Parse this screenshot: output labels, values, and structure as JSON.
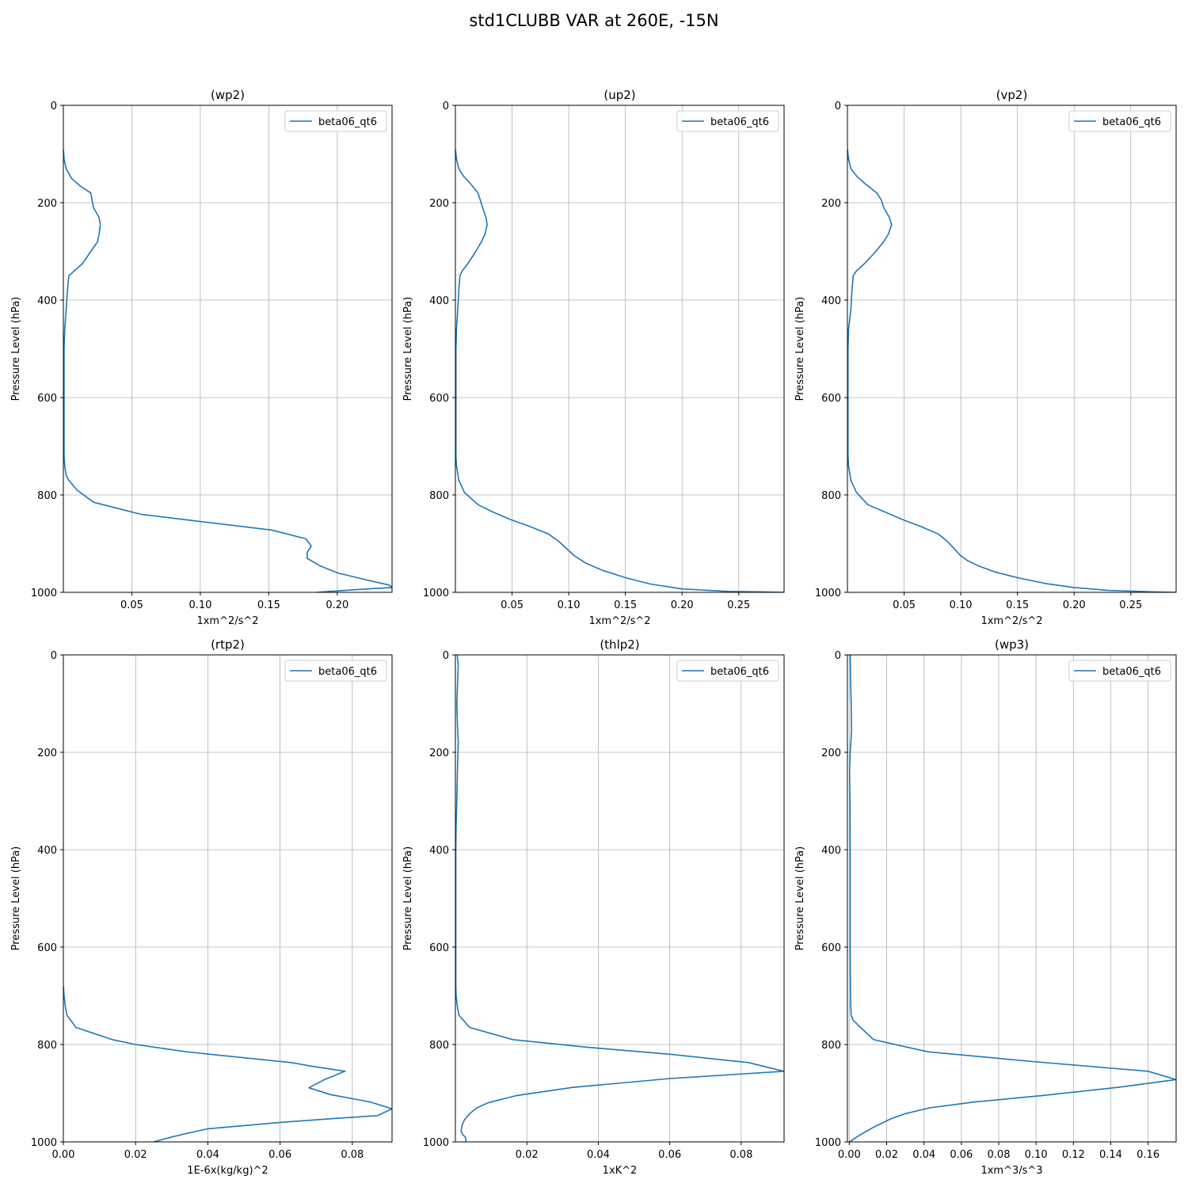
{
  "figure": {
    "title": "std1CLUBB VAR at 260E, -15N"
  },
  "chart_data": [
    {
      "type": "line",
      "title": "(wp2)",
      "xlabel": "1xm^2/s^2",
      "ylabel": "Pressure Level (hPa)",
      "xlim": [
        0.0,
        0.24
      ],
      "ylim": [
        1000,
        0
      ],
      "xticks": [
        0.05,
        0.1,
        0.15,
        0.2
      ],
      "xtick_labels": [
        "0.05",
        "0.10",
        "0.15",
        "0.20"
      ],
      "yticks": [
        0,
        200,
        400,
        600,
        800,
        1000
      ],
      "ytick_labels": [
        "0",
        "200",
        "400",
        "600",
        "800",
        "1000"
      ],
      "grid": true,
      "legend_position": "upper-right",
      "series": [
        {
          "name": "beta06_qt6",
          "color": "#1f77b4",
          "x": [
            0.0,
            0.0005,
            0.002,
            0.006,
            0.012,
            0.02,
            0.021,
            0.022,
            0.026,
            0.027,
            0.026,
            0.025,
            0.02,
            0.014,
            0.008,
            0.004,
            0.003,
            0.002,
            0.001,
            0.0005,
            0.0005,
            0.0005,
            0.0005,
            0.0005,
            0.0005,
            0.001,
            0.002,
            0.004,
            0.01,
            0.022,
            0.057,
            0.152,
            0.177,
            0.181,
            0.178,
            0.178,
            0.187,
            0.2,
            0.222,
            0.238,
            0.24,
            0.222,
            0.2,
            0.185
          ],
          "y": [
            90,
            110,
            130,
            150,
            165,
            180,
            195,
            210,
            230,
            245,
            265,
            280,
            300,
            325,
            340,
            350,
            380,
            420,
            460,
            500,
            550,
            600,
            650,
            700,
            720,
            740,
            760,
            770,
            790,
            815,
            840,
            872,
            890,
            905,
            918,
            930,
            945,
            960,
            975,
            985,
            990,
            993,
            997,
            1000
          ]
        }
      ]
    },
    {
      "type": "line",
      "title": "(up2)",
      "xlabel": "1xm^2/s^2",
      "ylabel": "Pressure Level (hPa)",
      "xlim": [
        0.0,
        0.29
      ],
      "ylim": [
        1000,
        0
      ],
      "xticks": [
        0.05,
        0.1,
        0.15,
        0.2,
        0.25
      ],
      "xtick_labels": [
        "0.05",
        "0.10",
        "0.15",
        "0.20",
        "0.25"
      ],
      "yticks": [
        0,
        200,
        400,
        600,
        800,
        1000
      ],
      "ytick_labels": [
        "0",
        "200",
        "400",
        "600",
        "800",
        "1000"
      ],
      "grid": true,
      "legend_position": "upper-right",
      "series": [
        {
          "name": "beta06_qt6",
          "color": "#1f77b4",
          "x": [
            0.0,
            0.001,
            0.003,
            0.007,
            0.013,
            0.02,
            0.022,
            0.024,
            0.027,
            0.028,
            0.026,
            0.023,
            0.018,
            0.011,
            0.006,
            0.004,
            0.003,
            0.002,
            0.001,
            0.0005,
            0.0005,
            0.0005,
            0.0005,
            0.0005,
            0.0005,
            0.001,
            0.003,
            0.008,
            0.02,
            0.033,
            0.048,
            0.066,
            0.082,
            0.091,
            0.098,
            0.105,
            0.115,
            0.13,
            0.15,
            0.172,
            0.2,
            0.24,
            0.27,
            0.29
          ],
          "y": [
            90,
            110,
            130,
            145,
            160,
            180,
            195,
            210,
            230,
            245,
            265,
            280,
            300,
            325,
            340,
            350,
            380,
            420,
            460,
            500,
            550,
            600,
            650,
            700,
            720,
            740,
            770,
            795,
            820,
            835,
            850,
            865,
            880,
            895,
            910,
            925,
            940,
            955,
            970,
            983,
            993,
            998,
            999,
            1000
          ]
        }
      ]
    },
    {
      "type": "line",
      "title": "(vp2)",
      "xlabel": "1xm^2/s^2",
      "ylabel": "Pressure Level (hPa)",
      "xlim": [
        0.0,
        0.29
      ],
      "ylim": [
        1000,
        0
      ],
      "xticks": [
        0.05,
        0.1,
        0.15,
        0.2,
        0.25
      ],
      "xtick_labels": [
        "0.05",
        "0.10",
        "0.15",
        "0.20",
        "0.25"
      ],
      "yticks": [
        0,
        200,
        400,
        600,
        800,
        1000
      ],
      "ytick_labels": [
        "0",
        "200",
        "400",
        "600",
        "800",
        "1000"
      ],
      "grid": true,
      "legend_position": "upper-right",
      "series": [
        {
          "name": "beta06_qt6",
          "color": "#1f77b4",
          "x": [
            0.0,
            0.001,
            0.003,
            0.008,
            0.015,
            0.026,
            0.03,
            0.032,
            0.037,
            0.039,
            0.036,
            0.032,
            0.025,
            0.015,
            0.008,
            0.005,
            0.004,
            0.003,
            0.001,
            0.0005,
            0.0005,
            0.0005,
            0.0005,
            0.0005,
            0.0005,
            0.001,
            0.003,
            0.008,
            0.018,
            0.033,
            0.048,
            0.065,
            0.08,
            0.088,
            0.094,
            0.1,
            0.106,
            0.115,
            0.13,
            0.15,
            0.175,
            0.2,
            0.23,
            0.27,
            0.29
          ],
          "y": [
            90,
            110,
            130,
            145,
            160,
            180,
            195,
            210,
            230,
            245,
            265,
            280,
            300,
            325,
            340,
            350,
            380,
            420,
            460,
            500,
            550,
            600,
            650,
            700,
            720,
            740,
            770,
            795,
            820,
            835,
            850,
            865,
            880,
            895,
            910,
            925,
            935,
            945,
            958,
            970,
            982,
            990,
            996,
            999,
            1000
          ]
        }
      ]
    },
    {
      "type": "line",
      "title": "(rtp2)",
      "xlabel": "1E-6x(kg/kg)^2",
      "ylabel": "Pressure Level (hPa)",
      "xlim": [
        0.0,
        0.091
      ],
      "ylim": [
        1000,
        0
      ],
      "xticks": [
        0.0,
        0.02,
        0.04,
        0.06,
        0.08
      ],
      "xtick_labels": [
        "0.00",
        "0.02",
        "0.04",
        "0.06",
        "0.08"
      ],
      "yticks": [
        0,
        200,
        400,
        600,
        800,
        1000
      ],
      "ytick_labels": [
        "0",
        "200",
        "400",
        "600",
        "800",
        "1000"
      ],
      "grid": true,
      "legend_position": "upper-right",
      "series": [
        {
          "name": "beta06_qt6",
          "color": "#1f77b4",
          "x": [
            0.0,
            0.0002,
            0.0005,
            0.001,
            0.0035,
            0.0135,
            0.02,
            0.034,
            0.063,
            0.07,
            0.078,
            0.072,
            0.068,
            0.074,
            0.085,
            0.091,
            0.087,
            0.073,
            0.06,
            0.04,
            0.034,
            0.03,
            0.025
          ],
          "y": [
            680,
            700,
            720,
            740,
            765,
            790,
            800,
            815,
            837,
            846,
            855,
            873,
            889,
            903,
            918,
            932,
            946,
            953,
            960,
            973,
            983,
            990,
            1000
          ]
        }
      ]
    },
    {
      "type": "line",
      "title": "(thlp2)",
      "xlabel": "1xK^2",
      "ylabel": "Pressure Level (hPa)",
      "xlim": [
        0.0,
        0.092
      ],
      "ylim": [
        1000,
        0
      ],
      "xticks": [
        0.02,
        0.04,
        0.06,
        0.08
      ],
      "xtick_labels": [
        "0.02",
        "0.04",
        "0.06",
        "0.08"
      ],
      "yticks": [
        0,
        200,
        400,
        600,
        800,
        1000
      ],
      "ytick_labels": [
        "0",
        "200",
        "400",
        "600",
        "800",
        "1000"
      ],
      "grid": true,
      "legend_position": "upper-right",
      "series": [
        {
          "name": "beta06_qt6",
          "color": "#1f77b4",
          "x": [
            0.0005,
            0.0008,
            0.0006,
            0.0004,
            0.0006,
            0.0008,
            0.0006,
            0.0004,
            0.0002,
            0.0001,
            0.0001,
            0.0001,
            0.0001,
            0.0001,
            0.0002,
            0.0005,
            0.001,
            0.004,
            0.016,
            0.036,
            0.06,
            0.082,
            0.092,
            0.06,
            0.033,
            0.017,
            0.009,
            0.006,
            0.004,
            0.0025,
            0.0018,
            0.0016,
            0.002,
            0.0028,
            0.003
          ],
          "y": [
            0,
            20,
            60,
            100,
            150,
            180,
            230,
            300,
            350,
            400,
            500,
            600,
            650,
            680,
            700,
            720,
            740,
            765,
            790,
            805,
            820,
            837,
            855,
            870,
            888,
            905,
            920,
            930,
            942,
            955,
            967,
            978,
            985,
            990,
            1000
          ]
        }
      ]
    },
    {
      "type": "line",
      "title": "(wp3)",
      "xlabel": "1xm^3/s^3",
      "ylabel": "Pressure Level (hPa)",
      "xlim": [
        -0.001,
        0.175
      ],
      "ylim": [
        1000,
        0
      ],
      "xticks": [
        0.0,
        0.02,
        0.04,
        0.06,
        0.08,
        0.1,
        0.12,
        0.14,
        0.16
      ],
      "xtick_labels": [
        "0.00",
        "0.02",
        "0.04",
        "0.06",
        "0.08",
        "0.10",
        "0.12",
        "0.14",
        "0.16"
      ],
      "yticks": [
        0,
        200,
        400,
        600,
        800,
        1000
      ],
      "ytick_labels": [
        "0",
        "200",
        "400",
        "600",
        "800",
        "1000"
      ],
      "grid": true,
      "legend_position": "upper-right",
      "series": [
        {
          "name": "beta06_qt6",
          "color": "#1f77b4",
          "x": [
            0.0005,
            0.0007,
            0.001,
            0.0012,
            0.001,
            0.0005,
            0.0002,
            0.0002,
            0.0004,
            0.0005,
            0.0005,
            0.0005,
            0.0006,
            0.0008,
            0.001,
            0.002,
            0.006,
            0.013,
            0.042,
            0.098,
            0.16,
            0.175,
            0.144,
            0.103,
            0.067,
            0.043,
            0.03,
            0.022,
            0.013,
            0.006,
            0.002,
            0.0
          ],
          "y": [
            0,
            50,
            100,
            150,
            170,
            200,
            230,
            260,
            300,
            400,
            500,
            600,
            680,
            720,
            740,
            750,
            765,
            790,
            815,
            835,
            855,
            872,
            888,
            905,
            918,
            930,
            942,
            953,
            970,
            985,
            995,
            1000
          ]
        }
      ]
    }
  ]
}
